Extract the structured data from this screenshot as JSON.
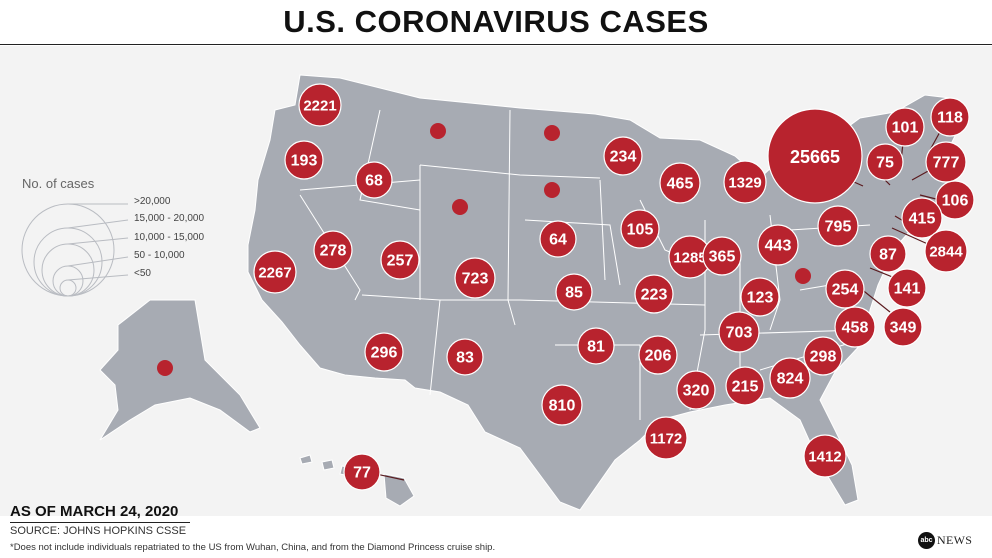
{
  "title": "U.S. CORONAVIRUS CASES",
  "legend": {
    "title": "No. of cases",
    "ranges": [
      ">20,000",
      "15,000 - 20,000",
      "10,000 - 15,000",
      "50 - 10,000",
      "<50"
    ]
  },
  "date_label": "AS OF MARCH 24, 2020",
  "source": "SOURCE: JOHNS HOPKINS CSSE",
  "footnote": "*Does not include individuals repatriated to the US from Wuhan, China, and from the Diamond Princess cruise ship.",
  "brand": {
    "logo_text": "abc",
    "word": "NEWS"
  },
  "colors": {
    "bubble": "#b8232e",
    "land": "#a7abb3",
    "border": "#ffffff",
    "background": "#f3f3f3"
  },
  "states": [
    {
      "state": "WA",
      "cases": "2221"
    },
    {
      "state": "OR",
      "cases": "193"
    },
    {
      "state": "CA",
      "cases": "2267"
    },
    {
      "state": "ID",
      "cases": "68"
    },
    {
      "state": "NV",
      "cases": "278"
    },
    {
      "state": "UT",
      "cases": "257"
    },
    {
      "state": "AZ",
      "cases": "296"
    },
    {
      "state": "MT",
      "cases": ""
    },
    {
      "state": "WY",
      "cases": ""
    },
    {
      "state": "CO",
      "cases": "723"
    },
    {
      "state": "NM",
      "cases": "83"
    },
    {
      "state": "ND",
      "cases": ""
    },
    {
      "state": "SD",
      "cases": ""
    },
    {
      "state": "NE",
      "cases": "64"
    },
    {
      "state": "KS",
      "cases": "85"
    },
    {
      "state": "OK",
      "cases": "81"
    },
    {
      "state": "TX",
      "cases": "810"
    },
    {
      "state": "MN",
      "cases": "234"
    },
    {
      "state": "IA",
      "cases": "105"
    },
    {
      "state": "MO",
      "cases": "223"
    },
    {
      "state": "AR",
      "cases": "206"
    },
    {
      "state": "LA",
      "cases": "1172"
    },
    {
      "state": "WI",
      "cases": "465"
    },
    {
      "state": "IL",
      "cases": "1285"
    },
    {
      "state": "MS",
      "cases": "320"
    },
    {
      "state": "MI",
      "cases": "1329"
    },
    {
      "state": "IN",
      "cases": "365"
    },
    {
      "state": "KY",
      "cases": "123"
    },
    {
      "state": "TN",
      "cases": "703"
    },
    {
      "state": "AL",
      "cases": "215"
    },
    {
      "state": "OH",
      "cases": "443"
    },
    {
      "state": "WV",
      "cases": ""
    },
    {
      "state": "GA",
      "cases": "824"
    },
    {
      "state": "FL",
      "cases": "1412"
    },
    {
      "state": "SC",
      "cases": "298"
    },
    {
      "state": "NC",
      "cases": "458"
    },
    {
      "state": "VA",
      "cases": "254"
    },
    {
      "state": "PA",
      "cases": "795"
    },
    {
      "state": "NY",
      "cases": "25665"
    },
    {
      "state": "VT",
      "cases": "75"
    },
    {
      "state": "NH",
      "cases": "101"
    },
    {
      "state": "ME",
      "cases": "118"
    },
    {
      "state": "MA",
      "cases": "777"
    },
    {
      "state": "RI",
      "cases": "106"
    },
    {
      "state": "CT",
      "cases": "415"
    },
    {
      "state": "NJ",
      "cases": "2844"
    },
    {
      "state": "DE",
      "cases": "87"
    },
    {
      "state": "MD",
      "cases": "141"
    },
    {
      "state": "DC",
      "cases": "349"
    },
    {
      "state": "AK",
      "cases": ""
    },
    {
      "state": "HI",
      "cases": "77"
    }
  ]
}
